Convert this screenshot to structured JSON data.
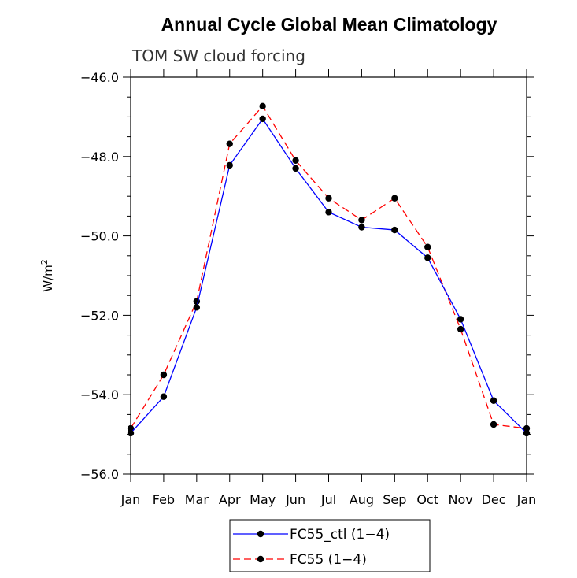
{
  "chart_data": {
    "type": "line",
    "title": "Annual Cycle Global Mean Climatology",
    "subtitle": "TOM SW cloud forcing",
    "ylabel": "W/m",
    "ylabel_superscript": "2",
    "xlabel": "",
    "categories": [
      "Jan",
      "Feb",
      "Mar",
      "Apr",
      "May",
      "Jun",
      "Jul",
      "Aug",
      "Sep",
      "Oct",
      "Nov",
      "Dec",
      "Jan"
    ],
    "ylim": [
      -56.0,
      -46.0
    ],
    "yticks": [
      -56.0,
      -54.0,
      -52.0,
      -50.0,
      -48.0,
      -46.0
    ],
    "ytick_labels": [
      "−56.0",
      "−54.0",
      "−52.0",
      "−50.0",
      "−48.0",
      "−46.0"
    ],
    "grid": false,
    "legend_position": "bottom-center",
    "series": [
      {
        "name": "FC55_ctl (1−4)",
        "color": "#0000ff",
        "dash": "solid",
        "marker": "filled-circle",
        "values": [
          -54.97,
          -54.05,
          -51.8,
          -48.22,
          -47.05,
          -48.3,
          -49.4,
          -49.78,
          -49.85,
          -50.55,
          -52.1,
          -54.15,
          -54.97
        ]
      },
      {
        "name": "FC55 (1−4)",
        "color": "#ff0000",
        "dash": "dashed",
        "marker": "filled-circle",
        "values": [
          -54.85,
          -53.5,
          -51.65,
          -47.68,
          -46.73,
          -48.1,
          -49.05,
          -49.6,
          -49.05,
          -50.28,
          -52.35,
          -54.75,
          -54.85
        ]
      }
    ]
  }
}
